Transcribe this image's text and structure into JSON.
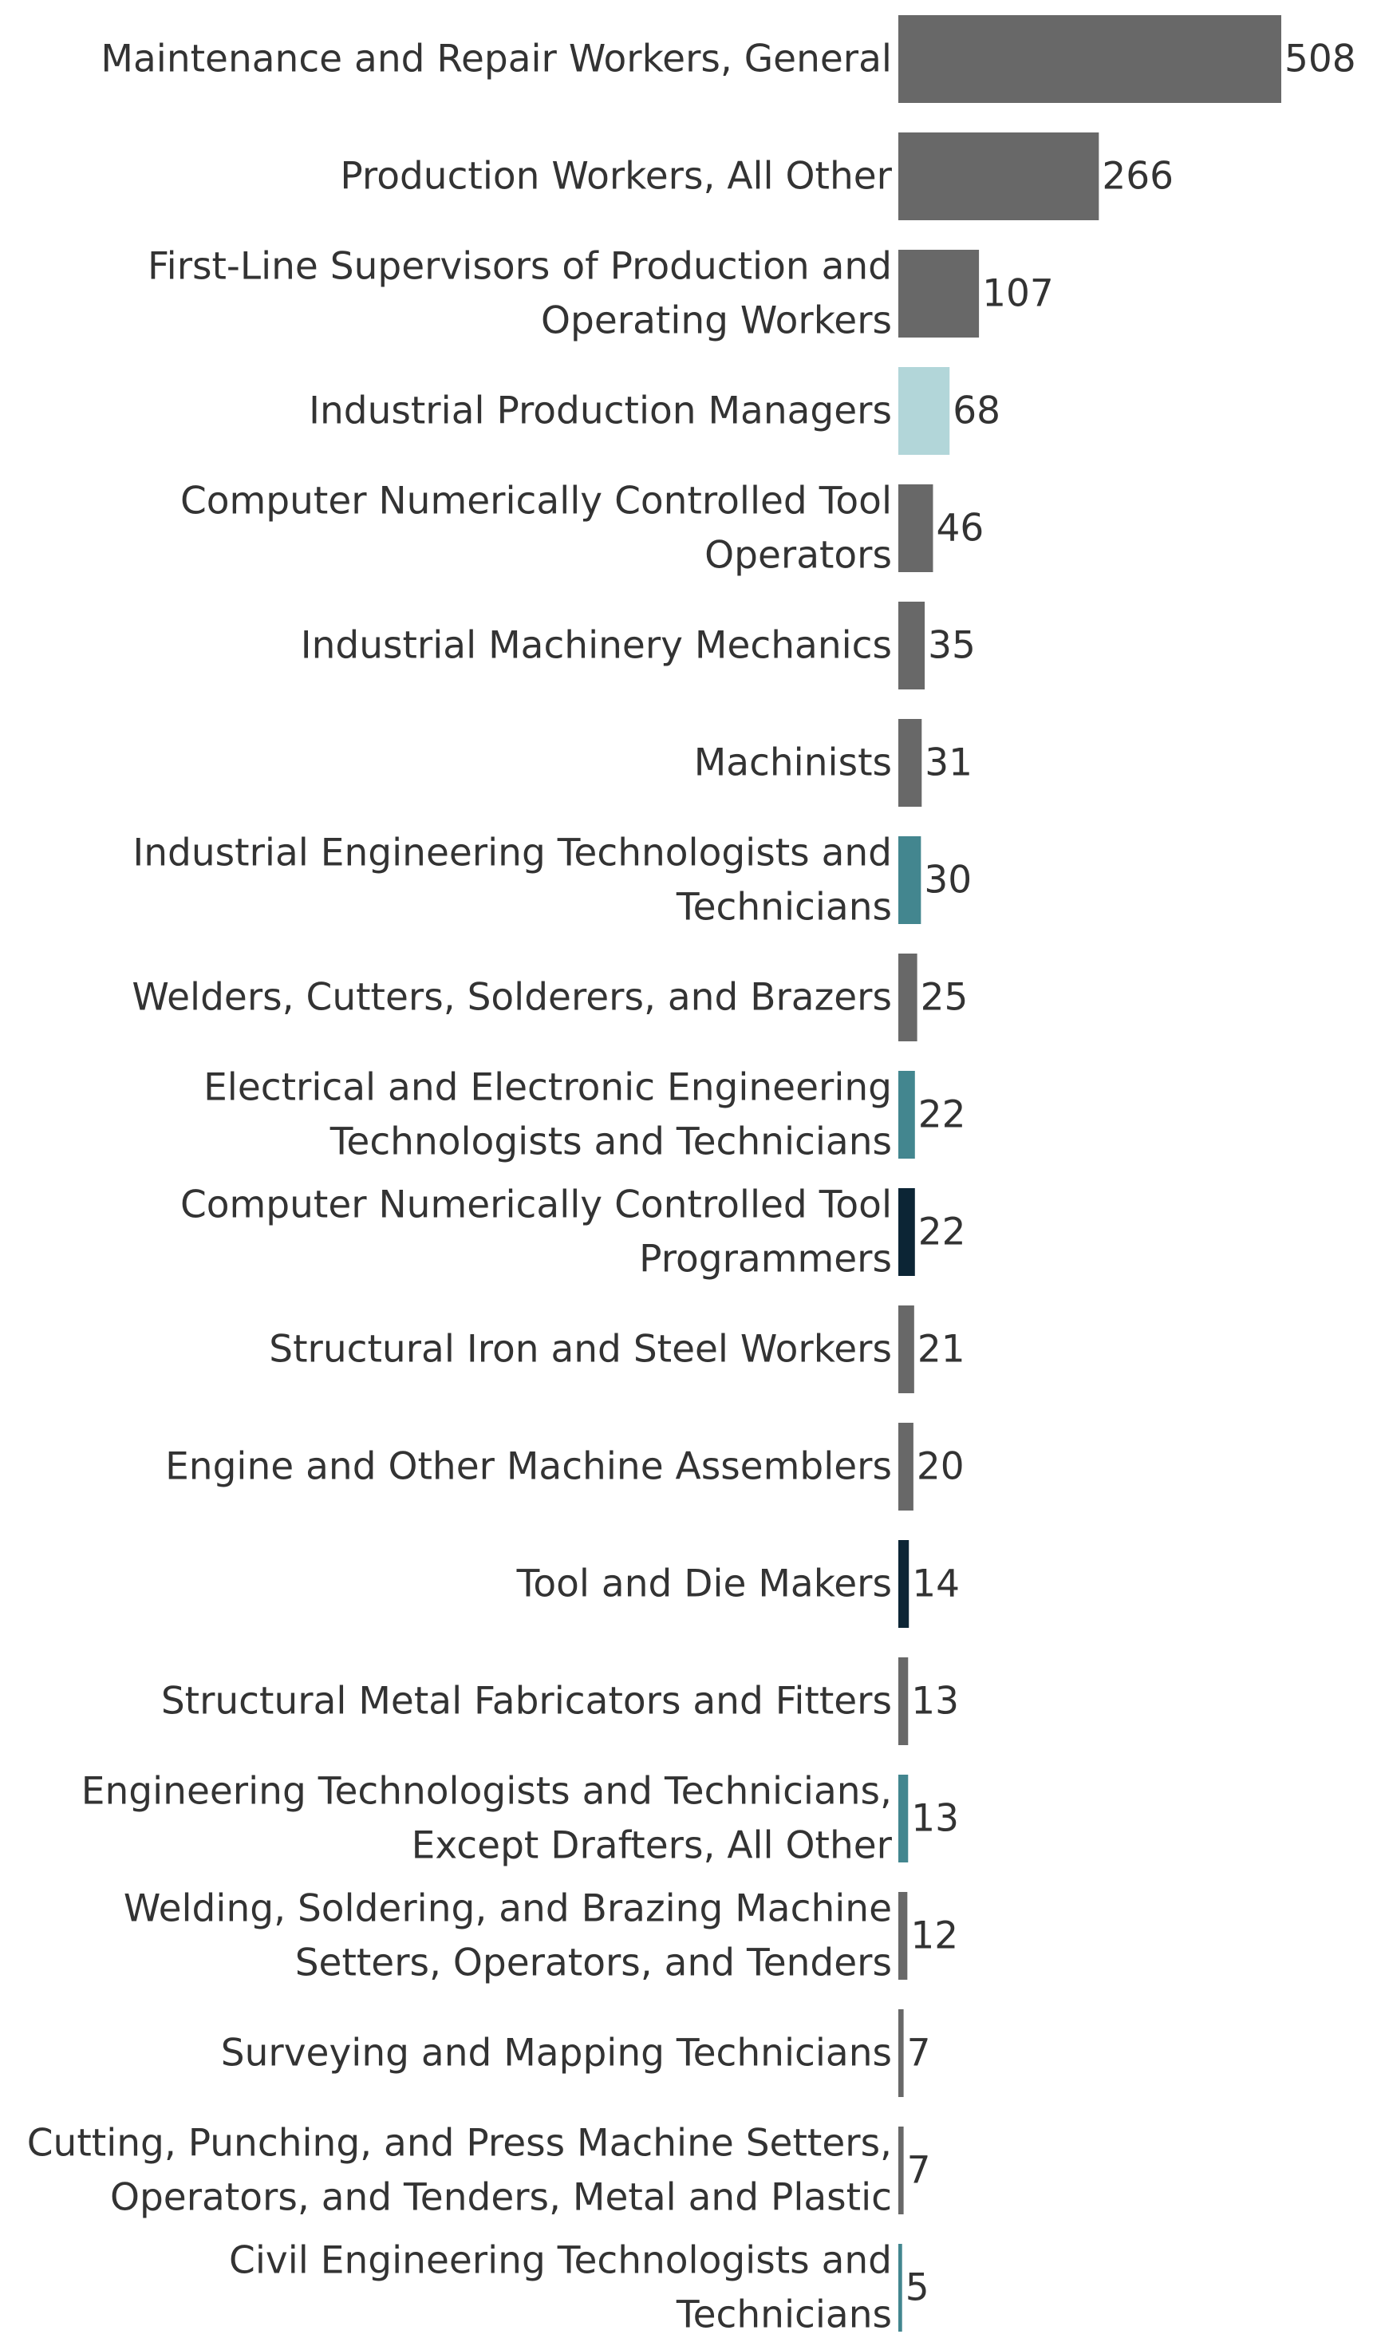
{
  "chart_data": {
    "type": "bar",
    "orientation": "horizontal",
    "title": "",
    "xlabel": "",
    "ylabel": "",
    "xlim": [
      0,
      508
    ],
    "grid": false,
    "legend": "none",
    "colors": {
      "gray": "#686868",
      "lightblue": "#b2d6d9",
      "teal": "#43868f",
      "navy": "#0c2535"
    },
    "bars": [
      {
        "label": [
          "Maintenance and Repair Workers, General"
        ],
        "value": 508,
        "color": "gray"
      },
      {
        "label": [
          "Production Workers, All Other"
        ],
        "value": 266,
        "color": "gray"
      },
      {
        "label": [
          "First-Line Supervisors of Production and",
          "Operating Workers"
        ],
        "value": 107,
        "color": "gray"
      },
      {
        "label": [
          "Industrial Production Managers"
        ],
        "value": 68,
        "color": "lightblue"
      },
      {
        "label": [
          "Computer Numerically Controlled Tool",
          "Operators"
        ],
        "value": 46,
        "color": "gray"
      },
      {
        "label": [
          "Industrial Machinery Mechanics"
        ],
        "value": 35,
        "color": "gray"
      },
      {
        "label": [
          "Machinists"
        ],
        "value": 31,
        "color": "gray"
      },
      {
        "label": [
          "Industrial Engineering Technologists and",
          "Technicians"
        ],
        "value": 30,
        "color": "teal"
      },
      {
        "label": [
          "Welders, Cutters, Solderers, and Brazers"
        ],
        "value": 25,
        "color": "gray"
      },
      {
        "label": [
          "Electrical and Electronic Engineering",
          "Technologists and Technicians"
        ],
        "value": 22,
        "color": "teal"
      },
      {
        "label": [
          "Computer Numerically Controlled Tool",
          "Programmers"
        ],
        "value": 22,
        "color": "navy"
      },
      {
        "label": [
          "Structural Iron and Steel Workers"
        ],
        "value": 21,
        "color": "gray"
      },
      {
        "label": [
          "Engine and Other Machine Assemblers"
        ],
        "value": 20,
        "color": "gray"
      },
      {
        "label": [
          "Tool and Die Makers"
        ],
        "value": 14,
        "color": "navy"
      },
      {
        "label": [
          "Structural Metal Fabricators and Fitters"
        ],
        "value": 13,
        "color": "gray"
      },
      {
        "label": [
          "Engineering Technologists and Technicians,",
          "Except Drafters, All Other"
        ],
        "value": 13,
        "color": "teal"
      },
      {
        "label": [
          "Welding, Soldering, and Brazing Machine",
          "Setters, Operators, and Tenders"
        ],
        "value": 12,
        "color": "gray"
      },
      {
        "label": [
          "Surveying and Mapping Technicians"
        ],
        "value": 7,
        "color": "gray"
      },
      {
        "label": [
          "Cutting, Punching, and Press Machine Setters,",
          "Operators, and Tenders, Metal and Plastic"
        ],
        "value": 7,
        "color": "gray"
      },
      {
        "label": [
          "Civil Engineering Technologists and",
          "Technicians"
        ],
        "value": 5,
        "color": "teal"
      }
    ]
  }
}
